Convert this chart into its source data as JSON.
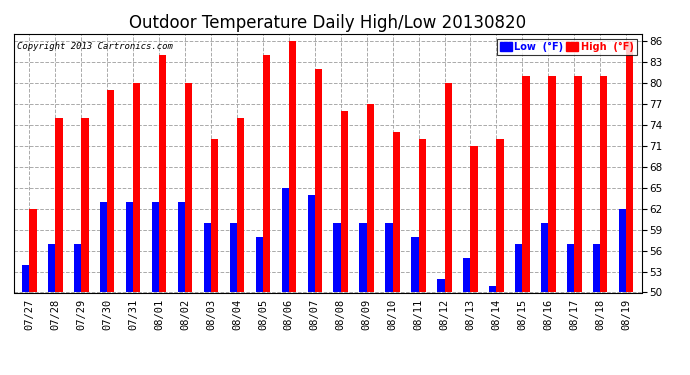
{
  "title": "Outdoor Temperature Daily High/Low 20130820",
  "copyright": "Copyright 2013 Cartronics.com",
  "labels": [
    "07/27",
    "07/28",
    "07/29",
    "07/30",
    "07/31",
    "08/01",
    "08/02",
    "08/03",
    "08/04",
    "08/05",
    "08/06",
    "08/07",
    "08/08",
    "08/09",
    "08/10",
    "08/11",
    "08/12",
    "08/13",
    "08/14",
    "08/15",
    "08/16",
    "08/17",
    "08/18",
    "08/19"
  ],
  "high": [
    62,
    75,
    75,
    79,
    80,
    84,
    80,
    72,
    75,
    84,
    86,
    82,
    76,
    77,
    73,
    72,
    80,
    71,
    72,
    81,
    81,
    81,
    81,
    86
  ],
  "low": [
    54,
    57,
    57,
    63,
    63,
    63,
    63,
    60,
    60,
    58,
    65,
    64,
    60,
    60,
    60,
    58,
    52,
    55,
    51,
    57,
    60,
    57,
    57,
    62
  ],
  "ylim": [
    50,
    87
  ],
  "yticks": [
    50.0,
    53.0,
    56.0,
    59.0,
    62.0,
    65.0,
    68.0,
    71.0,
    74.0,
    77.0,
    80.0,
    83.0,
    86.0
  ],
  "bar_width": 0.28,
  "high_color": "#ff0000",
  "low_color": "#0000ff",
  "bg_color": "#ffffff",
  "grid_color": "#aaaaaa",
  "title_fontsize": 12,
  "tick_fontsize": 7.5,
  "legend_low_label": "Low  (°F)",
  "legend_high_label": "High  (°F)"
}
